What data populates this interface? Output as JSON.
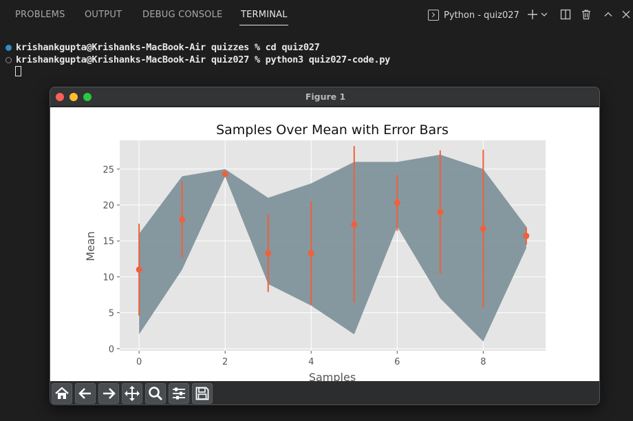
{
  "panel": {
    "tabs": [
      {
        "label": "PROBLEMS"
      },
      {
        "label": "OUTPUT"
      },
      {
        "label": "DEBUG CONSOLE"
      },
      {
        "label": "TERMINAL"
      }
    ],
    "terminal_selector": "Python - quiz027"
  },
  "terminal": {
    "lines": [
      "krishankgupta@Krishanks-MacBook-Air quizzes % cd quiz027",
      "krishankgupta@Krishanks-MacBook-Air quiz027 % python3 quiz027-code.py"
    ]
  },
  "figure": {
    "window_title": "Figure 1"
  },
  "colors": {
    "fill": "#7a8f97",
    "marker": "#f0603c",
    "axes_bg": "#e5e5e5"
  },
  "toolbar_icons": [
    "home-icon",
    "back-arrow-icon",
    "forward-arrow-icon",
    "pan-icon",
    "zoom-icon",
    "configure-subplots-icon",
    "save-icon"
  ],
  "chart_data": {
    "type": "line",
    "title": "Samples Over Mean with Error Bars",
    "xlabel": "Samples",
    "ylabel": "Mean",
    "x": [
      0,
      1,
      2,
      3,
      4,
      5,
      6,
      7,
      8,
      9
    ],
    "mean": [
      11.0,
      18.0,
      24.3,
      13.3,
      13.3,
      17.3,
      20.3,
      19.0,
      16.7,
      15.7
    ],
    "error": [
      6.4,
      5.3,
      0.4,
      5.4,
      7.2,
      10.9,
      3.9,
      8.6,
      11.0,
      1.2
    ],
    "fill_upper": [
      16,
      24,
      25,
      21,
      23,
      26,
      26,
      27,
      25,
      17
    ],
    "fill_lower": [
      2,
      11,
      24,
      9,
      6,
      2,
      17,
      7,
      1,
      14
    ],
    "xticks": [
      "0",
      "2",
      "4",
      "6",
      "8"
    ],
    "xtick_values": [
      0,
      2,
      4,
      6,
      8
    ],
    "yticks": [
      "0",
      "5",
      "10",
      "15",
      "20",
      "25"
    ],
    "ytick_values": [
      0,
      5,
      10,
      15,
      20,
      25
    ],
    "xlim": [
      -0.45,
      9.45
    ],
    "ylim": [
      -0.3,
      29.0
    ],
    "grid": true
  }
}
